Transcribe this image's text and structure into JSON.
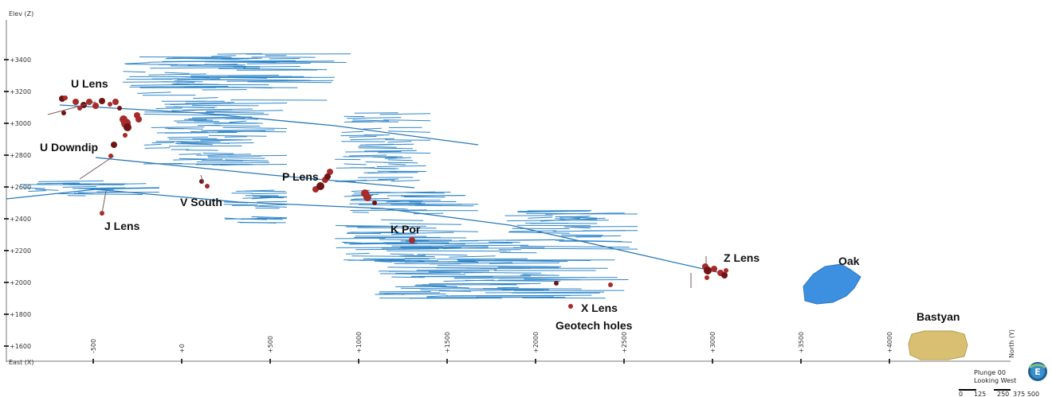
{
  "axes": {
    "z_title": "Elev (Z)",
    "x_title": "East (X)",
    "y_title": "North (Y)",
    "z_ticks": [
      "+3400",
      "+3200",
      "+3000",
      "+2800",
      "+2600",
      "+2400",
      "+2200",
      "+2000",
      "+1800",
      "+1600"
    ],
    "y_ticks": [
      "-500",
      "+0",
      "+500",
      "+1000",
      "+1500",
      "+2000",
      "+2500",
      "+3000",
      "+3500",
      "+4000"
    ]
  },
  "labels": {
    "u_lens": "U Lens",
    "u_downdip": "U Downdip",
    "p_lens": "P Lens",
    "v_south": "V South",
    "j_lens": "J Lens",
    "k_por": "K Por",
    "z_lens": "Z Lens",
    "x_lens": "X Lens",
    "geotech_holes": "Geotech holes",
    "oak": "Oak",
    "bastyan": "Bastyan"
  },
  "view": {
    "plunge": "Plunge 00",
    "looking": "Looking West",
    "compass_letter": "E",
    "scale_ticks": [
      "0",
      "125",
      "250",
      "375 500"
    ]
  },
  "colors": {
    "workings": "#2f86c9",
    "lens_red": "#a82a2a",
    "lens_dark": "#6e1414",
    "oak_blue": "#3d8fe0",
    "bastyan_gold": "#d8bf72"
  }
}
